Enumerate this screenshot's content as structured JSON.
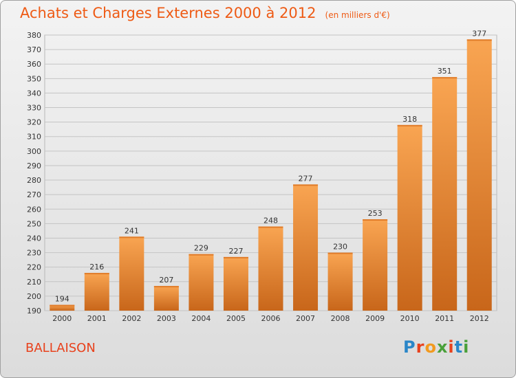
{
  "header": {
    "title": "Achats et Charges Externes 2000 à 2012",
    "subtitle": "(en milliers d'€)"
  },
  "footer": {
    "city": "BALLAISON",
    "brand": "Proxiti"
  },
  "colors": {
    "title": "#ee5a14",
    "bar_light": "#f9a552",
    "bar_dark": "#c8661a",
    "grid": "#c4c4c4"
  },
  "chart_data": {
    "type": "bar",
    "title": "Achats et Charges Externes 2000 à 2012",
    "subtitle": "(en milliers d'€)",
    "categories": [
      "2000",
      "2001",
      "2002",
      "2003",
      "2004",
      "2005",
      "2006",
      "2007",
      "2008",
      "2009",
      "2010",
      "2011",
      "2012"
    ],
    "values": [
      194,
      216,
      241,
      207,
      229,
      227,
      248,
      277,
      230,
      253,
      318,
      351,
      377
    ],
    "ylim": [
      190,
      380
    ],
    "yticks": [
      190,
      200,
      210,
      220,
      230,
      240,
      250,
      260,
      270,
      280,
      290,
      300,
      310,
      320,
      330,
      340,
      350,
      360,
      370,
      380
    ],
    "grid": true,
    "legend": "none"
  }
}
